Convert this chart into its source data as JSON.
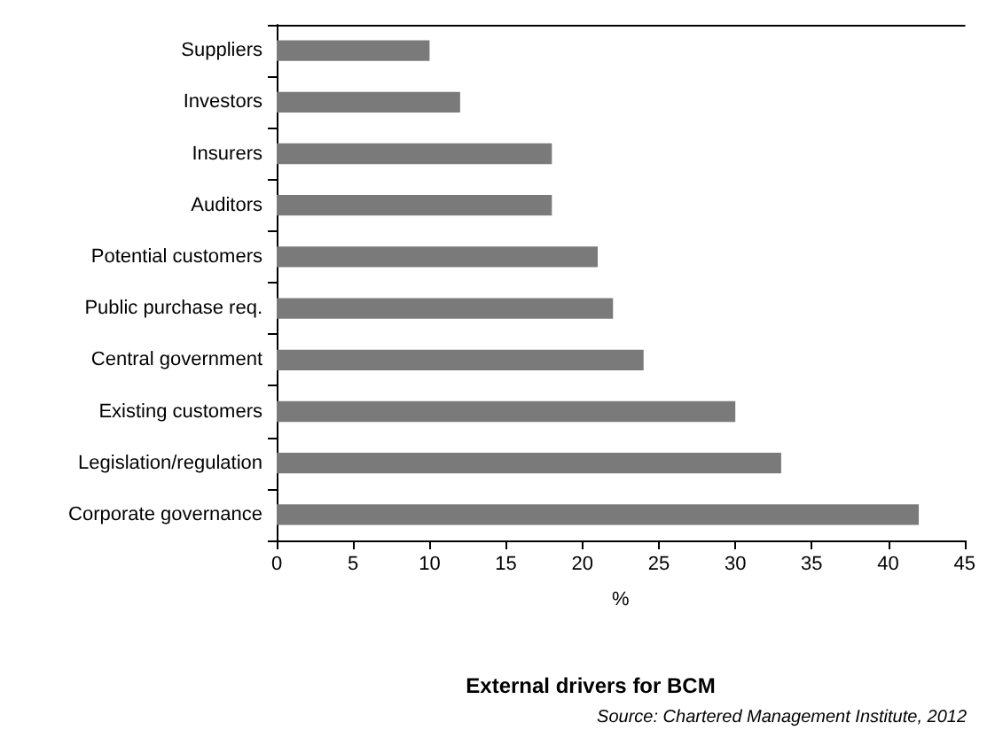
{
  "chart_data": {
    "type": "bar",
    "orientation": "horizontal",
    "title": "External drivers for BCM",
    "xlabel": "%",
    "annotations": [
      "Source: Chartered Management Institute, 2012"
    ],
    "categories": [
      "Suppliers",
      "Investors",
      "Insurers",
      "Auditors",
      "Potential customers",
      "Public purchase req.",
      "Central government",
      "Existing customers",
      "Legislation/regulation",
      "Corporate governance"
    ],
    "values": [
      10,
      12,
      18,
      18,
      21,
      22,
      24,
      30,
      33,
      42
    ],
    "color": "#7a7a7a",
    "xlim": [
      0,
      45
    ],
    "xticks": [
      0,
      5,
      10,
      15,
      20,
      25,
      30,
      35,
      40,
      45
    ],
    "grid": false
  }
}
